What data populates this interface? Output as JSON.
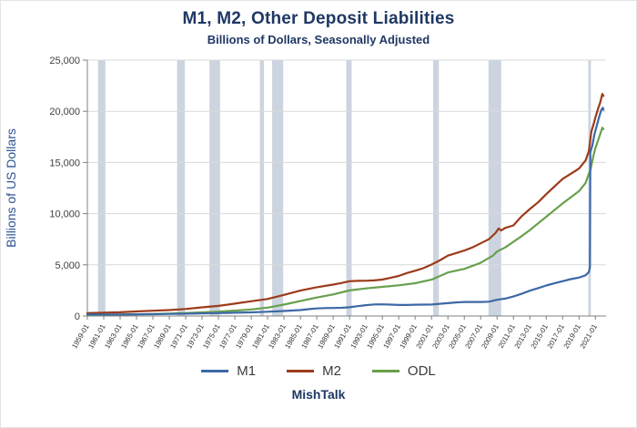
{
  "header": {
    "title": "M1, M2, Other Deposit Liabilities",
    "subtitle": "Billions of Dollars, Seasonally Adjusted"
  },
  "footer": {
    "brand": "MishTalk"
  },
  "colors": {
    "title_text": "#1F3864",
    "axis_title_text": "#2E5395",
    "tick_text": "#404040",
    "gridline": "#d9d9d9",
    "axis_line": "#808080"
  },
  "chart_data": {
    "type": "line",
    "title": "M1, M2, Other Deposit Liabilities",
    "subtitle": "Billions of Dollars, Seasonally Adjusted",
    "xlabel": "",
    "ylabel": "Billions of US Dollars",
    "ylim": [
      0,
      25000
    ],
    "yticks": [
      0,
      5000,
      10000,
      15000,
      20000,
      25000
    ],
    "x_range": [
      1959,
      2022.3
    ],
    "x_tick_labels": [
      "1959-01",
      "1961-01",
      "1963-01",
      "1965-01",
      "1967-01",
      "1969-01",
      "1971-01",
      "1973-01",
      "1975-01",
      "1977-01",
      "1979-01",
      "1981-01",
      "1983-01",
      "1985-01",
      "1987-01",
      "1989-01",
      "1991-01",
      "1993-01",
      "1995-01",
      "1997-01",
      "1999-01",
      "2001-01",
      "2003-01",
      "2005-01",
      "2007-01",
      "2009-01",
      "2011-01",
      "2013-01",
      "2015-01",
      "2017-01",
      "2019-01",
      "2021-01"
    ],
    "grid": true,
    "legend_position": "bottom",
    "band_color": "#ccd4df",
    "recession_bands": [
      [
        1960.3,
        1961.2
      ],
      [
        1969.95,
        1970.9
      ],
      [
        1973.9,
        1975.2
      ],
      [
        1980.05,
        1980.55
      ],
      [
        1981.55,
        1982.9
      ],
      [
        1990.6,
        1991.25
      ],
      [
        2001.2,
        2001.9
      ],
      [
        2007.95,
        2009.5
      ],
      [
        2020.13,
        2020.45
      ]
    ],
    "series": [
      {
        "name": "M1",
        "color": "#3D68A6",
        "points": [
          [
            1959,
            139
          ],
          [
            1961,
            143
          ],
          [
            1963,
            150
          ],
          [
            1965,
            162
          ],
          [
            1967,
            177
          ],
          [
            1969,
            201
          ],
          [
            1971,
            222
          ],
          [
            1973,
            256
          ],
          [
            1975,
            281
          ],
          [
            1977,
            317
          ],
          [
            1979,
            358
          ],
          [
            1981,
            420
          ],
          [
            1983,
            489
          ],
          [
            1985,
            575
          ],
          [
            1986,
            666
          ],
          [
            1987,
            740
          ],
          [
            1988,
            770
          ],
          [
            1989,
            784
          ],
          [
            1990,
            800
          ],
          [
            1991,
            850
          ],
          [
            1992,
            960
          ],
          [
            1993,
            1060
          ],
          [
            1994,
            1130
          ],
          [
            1995,
            1140
          ],
          [
            1996,
            1110
          ],
          [
            1997,
            1075
          ],
          [
            1998,
            1080
          ],
          [
            1999,
            1100
          ],
          [
            2000,
            1110
          ],
          [
            2001,
            1120
          ],
          [
            2002,
            1190
          ],
          [
            2003,
            1250
          ],
          [
            2004,
            1330
          ],
          [
            2005,
            1370
          ],
          [
            2006,
            1370
          ],
          [
            2007,
            1370
          ],
          [
            2008,
            1400
          ],
          [
            2009,
            1580
          ],
          [
            2010,
            1700
          ],
          [
            2011,
            1900
          ],
          [
            2012,
            2170
          ],
          [
            2013,
            2470
          ],
          [
            2014,
            2720
          ],
          [
            2015,
            2980
          ],
          [
            2016,
            3190
          ],
          [
            2017,
            3400
          ],
          [
            2018,
            3600
          ],
          [
            2019,
            3750
          ],
          [
            2019.8,
            3980
          ],
          [
            2020.2,
            4300
          ],
          [
            2020.33,
            4790
          ],
          [
            2020.38,
            16000
          ],
          [
            2020.6,
            16600
          ],
          [
            2020.9,
            17800
          ],
          [
            2021.1,
            18400
          ],
          [
            2021.4,
            19300
          ],
          [
            2021.7,
            20100
          ],
          [
            2021.9,
            20350
          ],
          [
            2021.98,
            20150
          ]
        ]
      },
      {
        "name": "M2",
        "color": "#9C3B1A",
        "points": [
          [
            1959,
            287
          ],
          [
            1961,
            316
          ],
          [
            1963,
            367
          ],
          [
            1965,
            442
          ],
          [
            1967,
            513
          ],
          [
            1969,
            579
          ],
          [
            1971,
            688
          ],
          [
            1973,
            843
          ],
          [
            1975,
            989
          ],
          [
            1977,
            1214
          ],
          [
            1979,
            1437
          ],
          [
            1981,
            1666
          ],
          [
            1983,
            2068
          ],
          [
            1985,
            2478
          ],
          [
            1987,
            2810
          ],
          [
            1989,
            3066
          ],
          [
            1990,
            3223
          ],
          [
            1991,
            3395
          ],
          [
            1992,
            3430
          ],
          [
            1993,
            3441
          ],
          [
            1994,
            3480
          ],
          [
            1995,
            3559
          ],
          [
            1996,
            3730
          ],
          [
            1997,
            3917
          ],
          [
            1998,
            4200
          ],
          [
            1999,
            4425
          ],
          [
            2000,
            4670
          ],
          [
            2001,
            5030
          ],
          [
            2002,
            5430
          ],
          [
            2003,
            5900
          ],
          [
            2004,
            6150
          ],
          [
            2005,
            6400
          ],
          [
            2006,
            6700
          ],
          [
            2007,
            7100
          ],
          [
            2008,
            7500
          ],
          [
            2008.8,
            8100
          ],
          [
            2009.2,
            8550
          ],
          [
            2009.5,
            8350
          ],
          [
            2010,
            8600
          ],
          [
            2011,
            8850
          ],
          [
            2012,
            9750
          ],
          [
            2013,
            10450
          ],
          [
            2014,
            11100
          ],
          [
            2015,
            11900
          ],
          [
            2016,
            12650
          ],
          [
            2017,
            13400
          ],
          [
            2018,
            13900
          ],
          [
            2019,
            14400
          ],
          [
            2019.8,
            15200
          ],
          [
            2020.2,
            16100
          ],
          [
            2020.5,
            18000
          ],
          [
            2020.8,
            18800
          ],
          [
            2021,
            19400
          ],
          [
            2021.3,
            20200
          ],
          [
            2021.6,
            20900
          ],
          [
            2021.85,
            21700
          ],
          [
            2021.98,
            21500
          ]
        ]
      },
      {
        "name": "ODL",
        "color": "#68A04E",
        "points": [
          [
            1959,
            110
          ],
          [
            1961,
            122
          ],
          [
            1963,
            140
          ],
          [
            1965,
            165
          ],
          [
            1967,
            196
          ],
          [
            1969,
            232
          ],
          [
            1971,
            292
          ],
          [
            1973,
            355
          ],
          [
            1975,
            425
          ],
          [
            1977,
            525
          ],
          [
            1979,
            645
          ],
          [
            1981,
            815
          ],
          [
            1983,
            1110
          ],
          [
            1985,
            1460
          ],
          [
            1987,
            1810
          ],
          [
            1989,
            2110
          ],
          [
            1991,
            2500
          ],
          [
            1993,
            2700
          ],
          [
            1995,
            2850
          ],
          [
            1997,
            3000
          ],
          [
            1999,
            3200
          ],
          [
            2001,
            3550
          ],
          [
            2003,
            4250
          ],
          [
            2005,
            4600
          ],
          [
            2007,
            5200
          ],
          [
            2008.5,
            5900
          ],
          [
            2009,
            6300
          ],
          [
            2010,
            6700
          ],
          [
            2011,
            7250
          ],
          [
            2012,
            7800
          ],
          [
            2013,
            8400
          ],
          [
            2014,
            9050
          ],
          [
            2015,
            9700
          ],
          [
            2016,
            10350
          ],
          [
            2017,
            11000
          ],
          [
            2018,
            11600
          ],
          [
            2019,
            12200
          ],
          [
            2019.8,
            13000
          ],
          [
            2020.2,
            13900
          ],
          [
            2020.4,
            14300
          ],
          [
            2020.5,
            14700
          ],
          [
            2020.8,
            15800
          ],
          [
            2021,
            16400
          ],
          [
            2021.3,
            17100
          ],
          [
            2021.6,
            17800
          ],
          [
            2021.85,
            18400
          ],
          [
            2021.98,
            18250
          ]
        ]
      }
    ]
  }
}
